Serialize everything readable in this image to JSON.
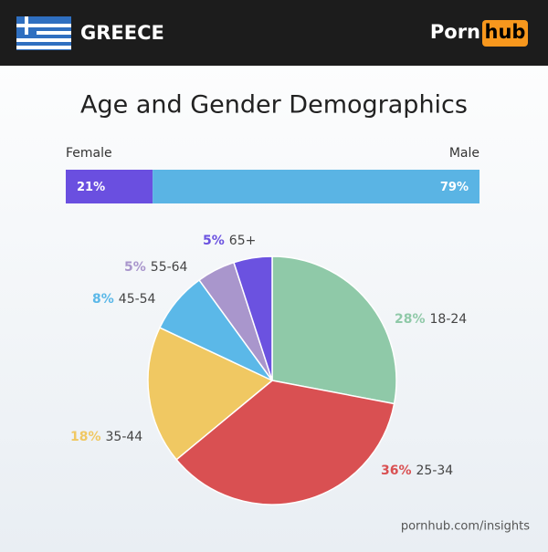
{
  "header": {
    "country": "GREECE",
    "logo": {
      "left": "Porn",
      "right": "hub"
    }
  },
  "chart_data": [
    {
      "type": "stacked-bar",
      "title": "Age and Gender Demographics",
      "series": [
        {
          "name": "Female",
          "color": "#6a4fe0",
          "values": [
            21
          ],
          "value_labels": [
            "21%"
          ]
        },
        {
          "name": "Male",
          "color": "#5ab4e4",
          "values": [
            79
          ],
          "value_labels": [
            "79%"
          ]
        }
      ]
    },
    {
      "type": "pie",
      "categories": [
        "18-24",
        "25-34",
        "35-44",
        "45-54",
        "55-64",
        "65+"
      ],
      "values": [
        28,
        36,
        18,
        8,
        5,
        5
      ],
      "value_labels": [
        "28%",
        "36%",
        "18%",
        "8%",
        "5%",
        "5%"
      ],
      "colors": [
        "#8fc9a8",
        "#d95052",
        "#f0c862",
        "#5bb8e8",
        "#a996cc",
        "#6b52e0"
      ]
    }
  ],
  "footer": "pornhub.com/insights"
}
